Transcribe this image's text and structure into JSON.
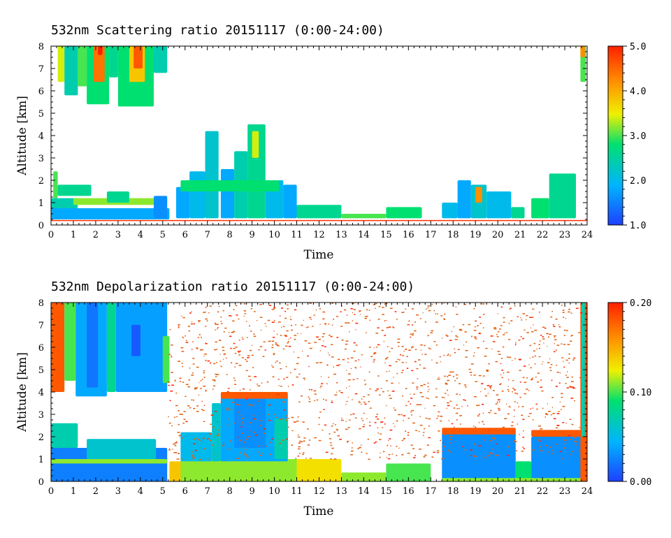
{
  "chart_data": [
    {
      "type": "heatmap",
      "title": "532nm Scattering ratio  20151117 (0:00-24:00)",
      "xlabel": "Time",
      "ylabel": "Altitude [km]",
      "xlim": [
        0,
        24
      ],
      "ylim": [
        0,
        8
      ],
      "x_ticks": [
        "0",
        "1",
        "2",
        "3",
        "4",
        "5",
        "6",
        "7",
        "8",
        "9",
        "10",
        "11",
        "12",
        "13",
        "14",
        "15",
        "16",
        "17",
        "18",
        "19",
        "20",
        "21",
        "22",
        "23",
        "24"
      ],
      "y_ticks": [
        "0",
        "1",
        "2",
        "3",
        "4",
        "5",
        "6",
        "7",
        "8"
      ],
      "colorbar": {
        "range": [
          1.0,
          5.0
        ],
        "ticks": [
          "1.0",
          "2.0",
          "3.0",
          "4.0",
          "5.0"
        ]
      },
      "colors": [
        "#2050ff",
        "#00c8ff",
        "#00e060",
        "#ffe000",
        "#ff8000",
        "#ff2000"
      ]
    },
    {
      "type": "heatmap",
      "title": "532nm Depolarization ratio  20151117 (0:00-24:00)",
      "xlabel": "Time",
      "ylabel": "Altitude [km]",
      "xlim": [
        0,
        24
      ],
      "ylim": [
        0,
        8
      ],
      "x_ticks": [
        "0",
        "1",
        "2",
        "3",
        "4",
        "5",
        "6",
        "7",
        "8",
        "9",
        "10",
        "11",
        "12",
        "13",
        "14",
        "15",
        "16",
        "17",
        "18",
        "19",
        "20",
        "21",
        "22",
        "23",
        "24"
      ],
      "y_ticks": [
        "0",
        "1",
        "2",
        "3",
        "4",
        "5",
        "6",
        "7",
        "8"
      ],
      "colorbar": {
        "range": [
          0.0,
          0.2
        ],
        "ticks": [
          "0.00",
          "0.10",
          "0.20"
        ]
      },
      "colors": [
        "#2050ff",
        "#00c8ff",
        "#00e060",
        "#ffe000",
        "#ff8000",
        "#ff2000"
      ]
    }
  ]
}
